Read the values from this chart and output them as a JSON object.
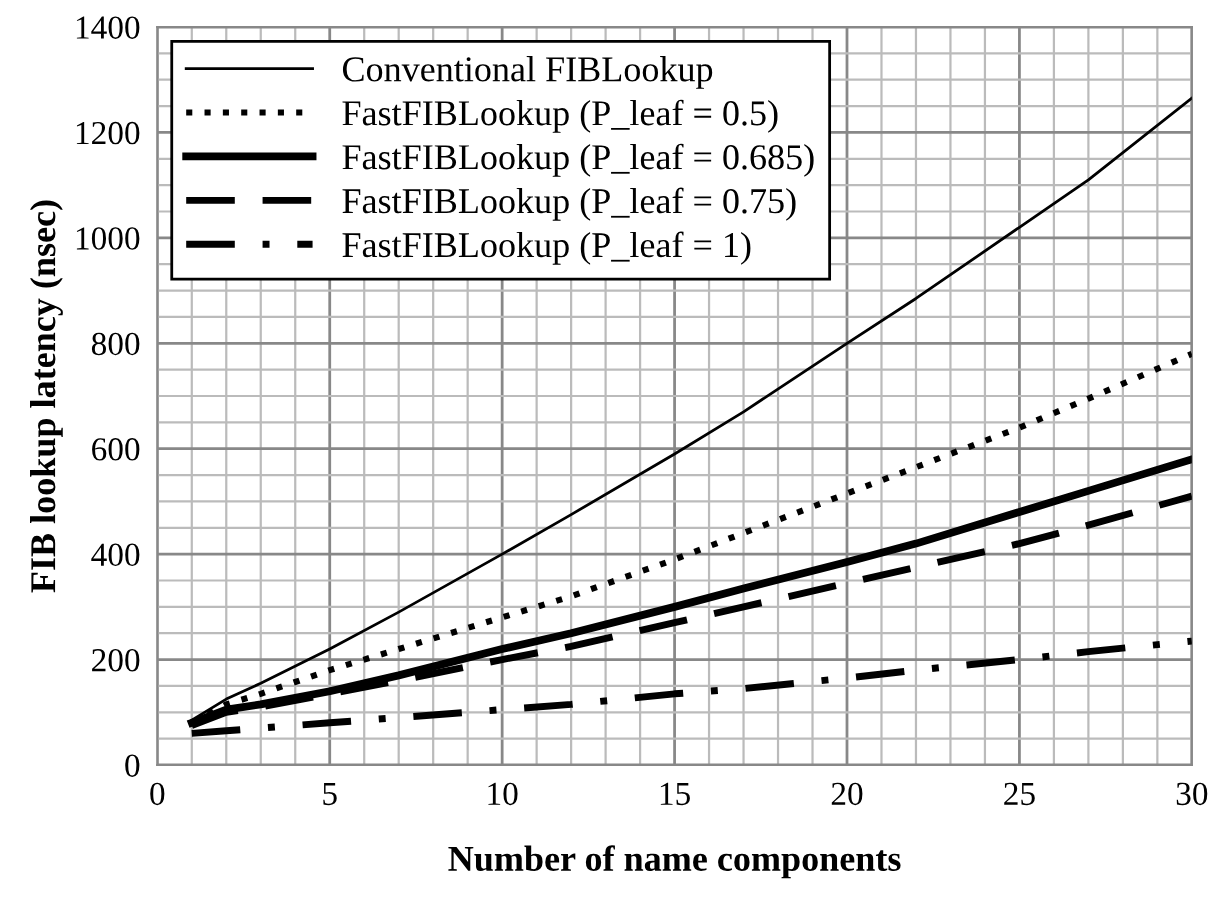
{
  "chart_data": {
    "type": "line",
    "xlabel": "Number of name components",
    "ylabel": "FIB lookup latency (nsec)",
    "x": [
      1,
      2,
      3,
      5,
      7,
      10,
      12,
      15,
      17,
      20,
      22,
      25,
      27,
      30
    ],
    "series": [
      {
        "name": "Conventional FIBLookup",
        "color": "#000000",
        "line_style": "solid",
        "values": [
          85,
          125,
          155,
          220,
          290,
          400,
          475,
          590,
          670,
          800,
          885,
          1020,
          1110,
          1265
        ]
      },
      {
        "name": "FastFIBLookup (P_leaf = 0.5)",
        "color": "#000000",
        "line_style": "dotted",
        "values": [
          80,
          115,
          135,
          180,
          220,
          280,
          320,
          390,
          440,
          515,
          565,
          640,
          695,
          780
        ]
      },
      {
        "name": "FastFIBLookup (P_leaf = 0.685)",
        "color": "#000000",
        "line_style": "solid",
        "values": [
          80,
          105,
          115,
          140,
          170,
          220,
          250,
          300,
          335,
          385,
          420,
          480,
          520,
          580
        ]
      },
      {
        "name": "FastFIBLookup (P_leaf = 0.75)",
        "color": "#000000",
        "line_style": "dashed",
        "values": [
          75,
          100,
          110,
          135,
          160,
          200,
          225,
          270,
          300,
          345,
          375,
          420,
          455,
          510
        ]
      },
      {
        "name": "FastFIBLookup (P_leaf = 1)",
        "color": "#000000",
        "line_style": "dashdot",
        "values": [
          60,
          65,
          70,
          80,
          90,
          105,
          115,
          135,
          145,
          165,
          180,
          200,
          215,
          235
        ]
      }
    ],
    "xlim": [
      0,
      30
    ],
    "xticks": [
      0,
      5,
      10,
      15,
      20,
      25,
      30
    ],
    "ylim": [
      0,
      1400
    ],
    "yticks": [
      0,
      200,
      400,
      600,
      800,
      1000,
      1200,
      1400
    ],
    "grid": true,
    "legend": "top left",
    "marker": "none"
  }
}
